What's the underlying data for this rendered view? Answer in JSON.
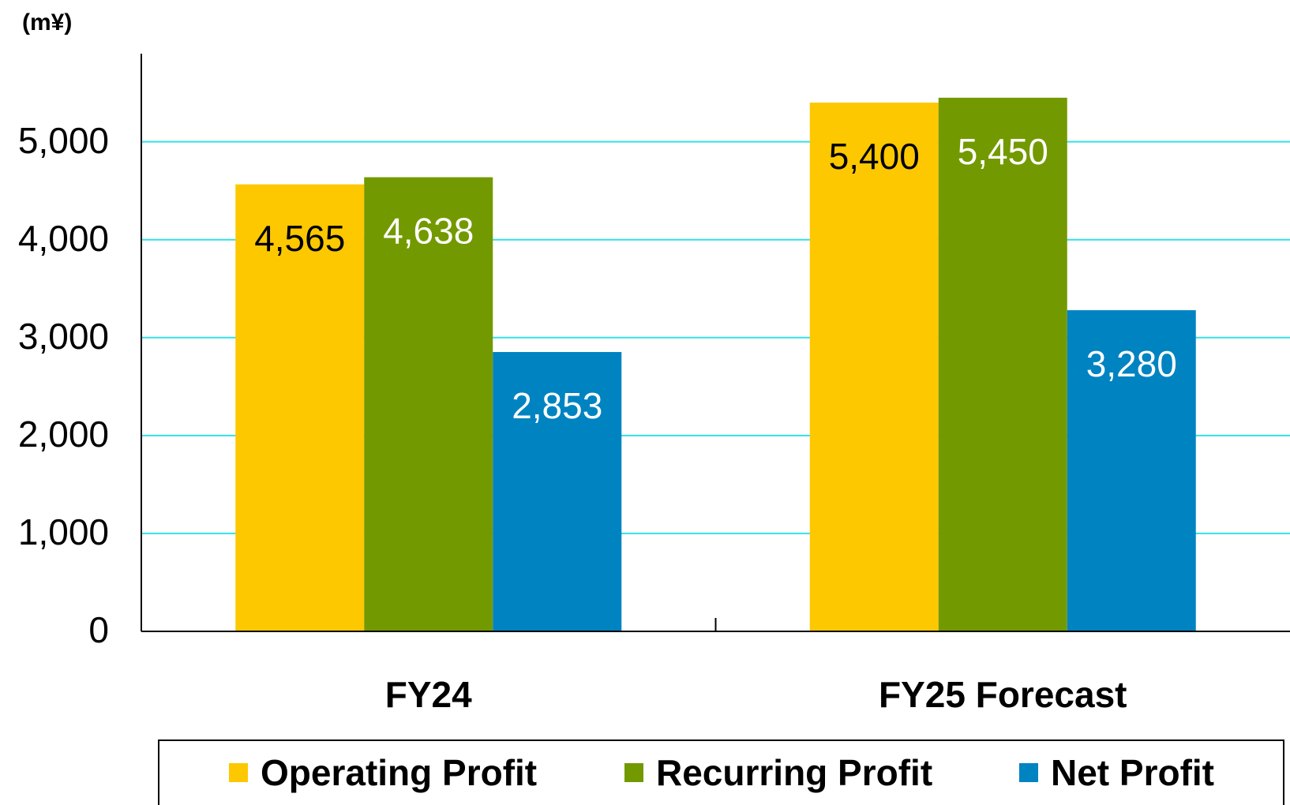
{
  "chart_data": {
    "type": "bar",
    "unit": "(m¥)",
    "categories": [
      "FY24",
      "FY25 Forecast"
    ],
    "series": [
      {
        "name": "Operating Profit",
        "color": "#fdc800",
        "label_color": "#000000",
        "values": [
          4565,
          5400
        ],
        "value_labels": [
          "4,565",
          "5,400"
        ]
      },
      {
        "name": "Recurring Profit",
        "color": "#739900",
        "label_color": "#ffffff",
        "values": [
          4638,
          5450
        ],
        "value_labels": [
          "4,638",
          "5,450"
        ]
      },
      {
        "name": "Net Profit",
        "color": "#0083c1",
        "label_color": "#ffffff",
        "values": [
          2853,
          3280
        ],
        "value_labels": [
          "2,853",
          "3,280"
        ]
      }
    ],
    "ylim": [
      0,
      5900
    ],
    "yticks": [
      0,
      {
        "value": 1000,
        "label": "1,000"
      },
      {
        "value": 2000,
        "label": "2,000"
      },
      {
        "value": 3000,
        "label": "3,000"
      },
      {
        "value": 4000,
        "label": "4,000"
      },
      {
        "value": 5000,
        "label": "5,000"
      }
    ],
    "grid": true,
    "grid_color": "#33e0e8",
    "legend": "bottom"
  }
}
